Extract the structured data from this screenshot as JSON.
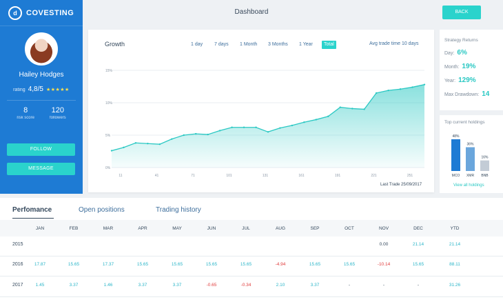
{
  "brand": {
    "name": "COVESTING",
    "logo_text": "d"
  },
  "header": {
    "title": "Dashboard",
    "back_label": "BACK"
  },
  "profile": {
    "name": "Hailey Hodges",
    "rating_label": "rating",
    "rating_value": "4,8/5",
    "rating_stars": "★★★★★",
    "risk_score": "8",
    "risk_score_label": "risk score",
    "followers": "120",
    "followers_label": "followers",
    "follow_label": "FOLLOW",
    "message_label": "MESSAGE"
  },
  "growth": {
    "title": "Growth",
    "ranges": [
      "1 day",
      "7 days",
      "1 Month",
      "3 Months",
      "1 Year",
      "Total"
    ],
    "active_range": "Total",
    "avg_trade": "Avg trade time 10 days",
    "last_trade": "Last Trade 25/09/2017"
  },
  "chart_data": [
    {
      "type": "area",
      "title": "Growth",
      "y_ticks": [
        "15%",
        "10%",
        "5%",
        "0%"
      ],
      "x_ticks": [
        "11",
        "41",
        "71",
        "101",
        "131",
        "161",
        "191",
        "221",
        "251"
      ],
      "ylim": [
        0,
        15
      ],
      "x": [
        0,
        1,
        2,
        3,
        4,
        5,
        6,
        7,
        8,
        9,
        10,
        11,
        12,
        13,
        14,
        15,
        16,
        17,
        18,
        19,
        20,
        21,
        22,
        23,
        24,
        25,
        26
      ],
      "values": [
        2.6,
        3.1,
        3.8,
        3.7,
        3.6,
        4.4,
        5.0,
        5.2,
        5.1,
        5.7,
        6.2,
        6.2,
        6.2,
        5.5,
        6.1,
        6.5,
        7.0,
        7.4,
        7.9,
        9.3,
        9.1,
        9.0,
        11.5,
        11.9,
        12.1,
        12.4,
        12.8
      ],
      "grid": true,
      "color": "#2ac8c3"
    },
    {
      "type": "bar",
      "title": "Top current holdings",
      "categories": [
        "MCO",
        "XMR",
        "BNB"
      ],
      "values": [
        48,
        36,
        16
      ],
      "labels": [
        "48%",
        "36%",
        "16%"
      ],
      "colors": [
        "#1e7bd4",
        "#6aa6dc",
        "#c3ccd6"
      ]
    }
  ],
  "strategy": {
    "title": "Strategy Returns",
    "rows": [
      {
        "label": "Day:",
        "value": "6%"
      },
      {
        "label": "Month:",
        "value": "19%"
      },
      {
        "label": "Year:",
        "value": "129%"
      },
      {
        "label": "Max Drawdown:",
        "value": "14"
      }
    ]
  },
  "holdings": {
    "title": "Top current holdings",
    "view_label": "View all holdings"
  },
  "performance": {
    "tabs": [
      "Perfomance",
      "Open positions",
      "Trading history"
    ],
    "active_tab": "Perfomance",
    "months": [
      "JAN",
      "FEB",
      "MAR",
      "APR",
      "MAY",
      "JUN",
      "JUL",
      "AUG",
      "SEP",
      "OCT",
      "NOV",
      "DEC",
      "YTD"
    ],
    "rows": [
      {
        "year": "2015",
        "values": [
          "",
          "",
          "",
          "",
          "",
          "",
          "",
          "",
          "",
          "",
          "0.00",
          "21.14",
          "21.14"
        ]
      },
      {
        "year": "2016",
        "values": [
          "17.87",
          "15.65",
          "17.37",
          "15.65",
          "15.65",
          "15.65",
          "15.65",
          "-4.94",
          "15.65",
          "15.65",
          "-10.14",
          "15.65",
          "88.11"
        ]
      },
      {
        "year": "2017",
        "values": [
          "1.45",
          "3.37",
          "1.46",
          "3.37",
          "3.37",
          "-0.65",
          "-0.34",
          "2.10",
          "3.37",
          "-",
          "-",
          "-",
          "31.26"
        ]
      }
    ]
  }
}
